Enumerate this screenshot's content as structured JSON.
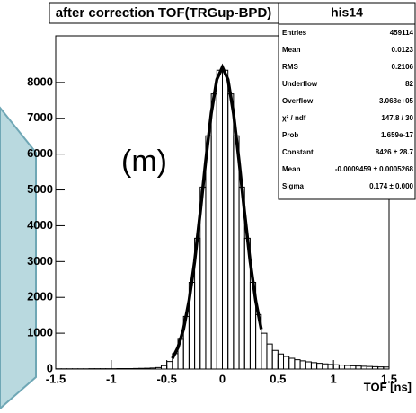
{
  "chart_data": {
    "type": "histogram",
    "title": "after correction TOF(TRGup-BPD)",
    "stats_title": "his14",
    "annotation": "(m)",
    "x_label": "TOF [ns]",
    "bins": [
      -1.5,
      -1.45,
      -1.4,
      -1.35,
      -1.3,
      -1.25,
      -1.2,
      -1.15,
      -1.1,
      -1.05,
      -1.0,
      -0.95,
      -0.9,
      -0.85,
      -0.8,
      -0.75,
      -0.7,
      -0.65,
      -0.6,
      -0.55,
      -0.5,
      -0.45,
      -0.4,
      -0.35,
      -0.3,
      -0.25,
      -0.2,
      -0.15,
      -0.1,
      -0.05,
      0,
      0.05,
      0.1,
      0.15,
      0.2,
      0.25,
      0.3,
      0.35,
      0.4,
      0.45,
      0.5,
      0.55,
      0.6,
      0.65,
      0.7,
      0.75,
      0.8,
      0.85,
      0.9,
      0.95,
      1.0,
      1.05,
      1.1,
      1.15,
      1.2,
      1.25,
      1.3,
      1.35,
      1.4,
      1.45,
      1.5
    ],
    "values": [
      5,
      5,
      6,
      6,
      7,
      7,
      8,
      8,
      9,
      10,
      10,
      11,
      12,
      14,
      16,
      18,
      22,
      28,
      40,
      95,
      210,
      430,
      830,
      1470,
      2420,
      3650,
      5080,
      6510,
      7680,
      8340,
      8340,
      7680,
      6510,
      5080,
      3650,
      2420,
      1520,
      1000,
      700,
      520,
      420,
      350,
      300,
      260,
      230,
      200,
      180,
      160,
      145,
      130,
      120,
      110,
      100,
      92,
      85,
      78,
      72,
      66,
      60,
      55
    ],
    "fit": {
      "x": [
        -0.45,
        -0.4,
        -0.35,
        -0.3,
        -0.25,
        -0.2,
        -0.15,
        -0.1,
        -0.05,
        0,
        0.05,
        0.1,
        0.15,
        0.2,
        0.25,
        0.3,
        0.35
      ],
      "values": [
        297,
        600,
        1114,
        1906,
        3002,
        4353,
        5811,
        7143,
        8085,
        8426,
        8085,
        7143,
        5811,
        4353,
        3002,
        1906,
        1114
      ]
    },
    "xlim": [
      -1.5,
      1.5
    ],
    "xticks": [
      -1.5,
      -1,
      -0.5,
      0,
      0.5,
      1,
      1.5
    ],
    "ylim": [
      0,
      9300
    ],
    "yticks": [
      0,
      1000,
      2000,
      3000,
      4000,
      5000,
      6000,
      7000,
      8000
    ],
    "stats": [
      [
        "Entries",
        "459114"
      ],
      [
        "Mean",
        "0.0123"
      ],
      [
        "RMS",
        "0.2106"
      ],
      [
        "Underflow",
        "82"
      ],
      [
        "Overflow",
        "3.068e+05"
      ],
      [
        "χ² / ndf",
        "147.8 / 30"
      ],
      [
        "Prob",
        "1.659e-17"
      ],
      [
        "Constant",
        "8426 ± 28.7"
      ],
      [
        "Mean",
        "-0.0009459 ± 0.0005268"
      ],
      [
        "Sigma",
        "0.174 ± 0.000"
      ]
    ]
  }
}
